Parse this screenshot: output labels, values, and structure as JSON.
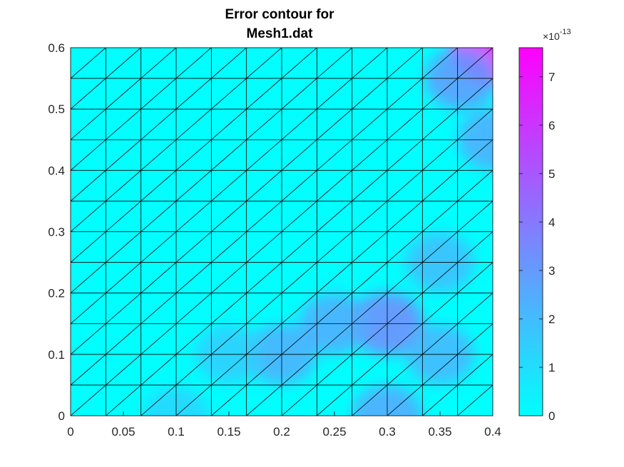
{
  "chart_data": {
    "type": "heatmap",
    "title_lines": [
      "Error contour for",
      "Mesh1.dat"
    ],
    "xlabel": "",
    "ylabel": "",
    "xlim": [
      0,
      0.4
    ],
    "ylim": [
      0,
      0.6
    ],
    "x_ticks": [
      "0",
      "0.05",
      "0.1",
      "0.15",
      "0.2",
      "0.25",
      "0.3",
      "0.35",
      "0.4"
    ],
    "y_ticks": [
      "0",
      "0.1",
      "0.2",
      "0.3",
      "0.4",
      "0.5",
      "0.6"
    ],
    "mesh": {
      "element": "triangle",
      "divisions_x": 12,
      "divisions_y": 12,
      "diagonal": "lower-left to upper-right"
    },
    "colormap": "cool",
    "colormap_endpoints": [
      "#00ffff",
      "#ff00ff"
    ],
    "edge_color": "#000000",
    "colorbar": {
      "location": "right",
      "limits": [
        0,
        7.6
      ],
      "ticks": [
        "0",
        "1",
        "2",
        "3",
        "4",
        "5",
        "6",
        "7"
      ],
      "exponent_base": "×10",
      "exponent": "-13"
    },
    "error_hotspots": [
      {
        "x": 0.4,
        "y": 0.6,
        "value": 7.6
      },
      {
        "x": 0.3,
        "y": 0.15,
        "value": 3.5
      },
      {
        "x": 0.3,
        "y": 0.0,
        "value": 2.6
      },
      {
        "x": 0.2,
        "y": 0.1,
        "value": 2.4
      },
      {
        "x": 0.25,
        "y": 0.15,
        "value": 2.5
      },
      {
        "x": 0.35,
        "y": 0.1,
        "value": 2.2
      },
      {
        "x": 0.35,
        "y": 0.25,
        "value": 2.0
      },
      {
        "x": 0.4,
        "y": 0.45,
        "value": 2.5
      },
      {
        "x": 0.37,
        "y": 0.55,
        "value": 3.0
      },
      {
        "x": 0.1,
        "y": 0.0,
        "value": 1.3
      },
      {
        "x": 0.15,
        "y": 0.1,
        "value": 1.5
      }
    ]
  }
}
